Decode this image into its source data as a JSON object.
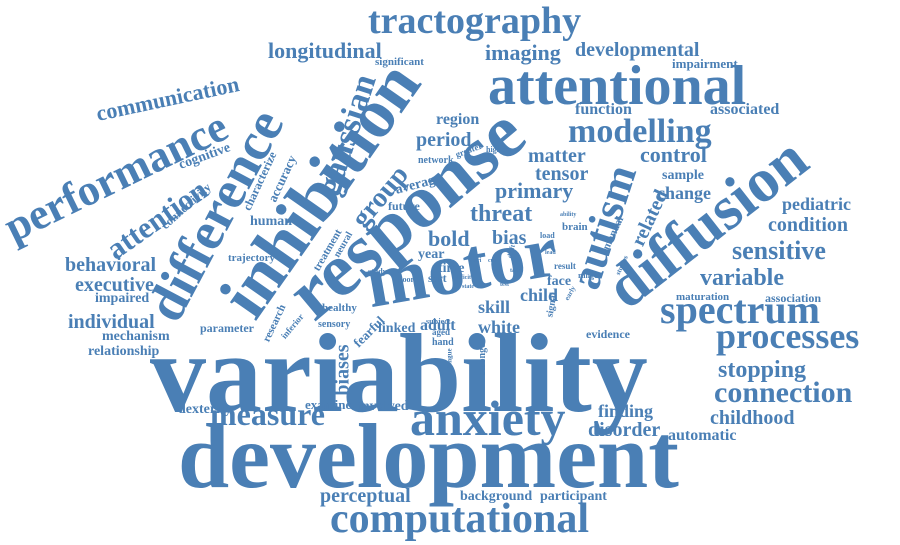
{
  "cloud": {
    "color": "#4a7fb5",
    "words": [
      "variability",
      "development",
      "motor",
      "response",
      "inhibition",
      "attentional",
      "diffusion",
      "difference",
      "performance",
      "autism",
      "anxiety",
      "spectrum",
      "computational",
      "tractography",
      "processes",
      "modelling",
      "connection",
      "measure",
      "longitudinal",
      "imaging",
      "developmental",
      "communication",
      "gaussian",
      "attention",
      "sensitive",
      "variable",
      "stopping",
      "matter",
      "control",
      "threat",
      "group",
      "primary",
      "tensor",
      "period",
      "region",
      "function",
      "associated",
      "pediatric",
      "condition",
      "childhood",
      "automatic",
      "disorder",
      "finding",
      "perceptual",
      "background",
      "participant",
      "executive",
      "behavioral",
      "individual",
      "relationship",
      "mechanism",
      "impaired",
      "dexterity",
      "examine",
      "involved",
      "biases",
      "bold",
      "bias",
      "skill",
      "child",
      "white",
      "adult",
      "face",
      "related",
      "change",
      "sample",
      "impairment",
      "significant",
      "cognitive",
      "connectivity",
      "characterize",
      "accuracy",
      "human",
      "average",
      "future",
      "network",
      "greater",
      "higher",
      "trajectory",
      "treatment",
      "neural",
      "research",
      "parameter",
      "inferior",
      "healthy",
      "sensory",
      "fearful",
      "linked",
      "hand",
      "aged",
      "stronger",
      "evidence",
      "maturation",
      "association",
      "year",
      "time",
      "ssrt",
      "poor",
      "study",
      "subject",
      "brain",
      "load",
      "ability",
      "result",
      "range",
      "manual",
      "signal",
      "tongue",
      "drift",
      "early",
      "deficit",
      "state",
      "task",
      "lead",
      "cue",
      "fmri",
      "test",
      "studies"
    ]
  }
}
